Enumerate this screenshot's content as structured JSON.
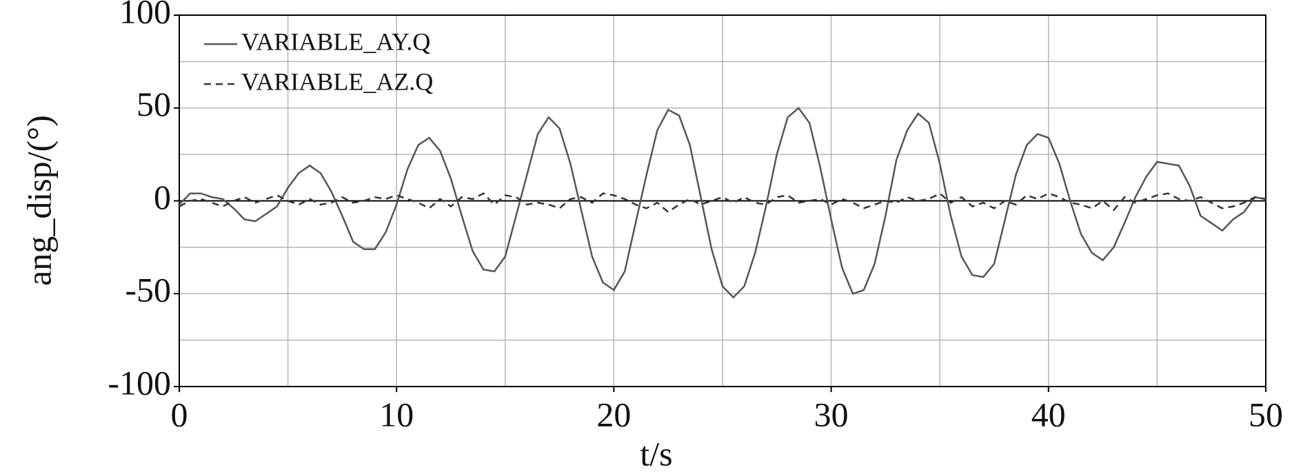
{
  "chart_data": {
    "type": "line",
    "xlabel": "t/s",
    "ylabel": "ang_disp/(°)",
    "x": [
      0,
      0.5,
      1,
      1.5,
      2,
      2.5,
      3,
      3.5,
      4,
      4.5,
      5,
      5.5,
      6,
      6.5,
      7,
      7.5,
      8,
      8.5,
      9,
      9.5,
      10,
      10.5,
      11,
      11.5,
      12,
      12.5,
      13,
      13.5,
      14,
      14.5,
      15,
      15.5,
      16,
      16.5,
      17,
      17.5,
      18,
      18.5,
      19,
      19.5,
      20,
      20.5,
      21,
      21.5,
      22,
      22.5,
      23,
      23.5,
      24,
      24.5,
      25,
      25.5,
      26,
      26.5,
      27,
      27.5,
      28,
      28.5,
      29,
      29.5,
      30,
      30.5,
      31,
      31.5,
      32,
      32.5,
      33,
      33.5,
      34,
      34.5,
      35,
      35.5,
      36,
      36.5,
      37,
      37.5,
      38,
      38.5,
      39,
      39.5,
      40,
      40.5,
      41,
      41.5,
      42,
      42.5,
      43,
      43.5,
      44,
      44.5,
      45,
      45.5,
      46,
      46.5,
      47,
      47.5,
      48,
      48.5,
      49,
      49.5,
      50
    ],
    "series": [
      {
        "name": "VARIABLE_AY.Q",
        "color": "#555555",
        "dash": "solid",
        "values": [
          -2,
          4,
          4,
          2,
          1,
          -4,
          -10,
          -11,
          -7,
          -3,
          7,
          15,
          19,
          15,
          5,
          -8,
          -22,
          -26,
          -26,
          -17,
          -2,
          17,
          30,
          34,
          27,
          12,
          -8,
          -27,
          -37,
          -38,
          -30,
          -8,
          14,
          36,
          45,
          39,
          20,
          -5,
          -30,
          -44,
          -48,
          -38,
          -12,
          14,
          38,
          49,
          46,
          30,
          2,
          -26,
          -46,
          -52,
          -46,
          -28,
          -3,
          25,
          45,
          50,
          42,
          18,
          -10,
          -36,
          -50,
          -48,
          -34,
          -8,
          22,
          38,
          47,
          42,
          20,
          -8,
          -30,
          -40,
          -41,
          -34,
          -10,
          14,
          30,
          36,
          34,
          20,
          0,
          -18,
          -28,
          -32,
          -25,
          -12,
          2,
          13,
          21,
          20,
          19,
          8,
          -8,
          -12,
          -16,
          -10,
          -6,
          2,
          1
        ]
      },
      {
        "name": "VARIABLE_AZ.Q",
        "color": "#333333",
        "dash": "dashed",
        "values": [
          -3,
          0,
          1,
          -1,
          -3,
          0,
          2,
          -1,
          1,
          3,
          0,
          -2,
          1,
          -2,
          -1,
          2,
          -1,
          0,
          2,
          1,
          3,
          1,
          -1,
          -4,
          1,
          -3,
          2,
          1,
          4,
          -2,
          3,
          2,
          -2,
          -1,
          -2,
          -4,
          1,
          2,
          -1,
          4,
          3,
          1,
          -2,
          -4,
          -1,
          -6,
          -2,
          1,
          -2,
          0,
          2,
          -1,
          2,
          -1,
          -2,
          2,
          3,
          -1,
          0,
          1,
          -2,
          1,
          -1,
          -4,
          -2,
          0,
          -1,
          2,
          0,
          1,
          4,
          -1,
          2,
          -3,
          -1,
          -4,
          0,
          -2,
          3,
          1,
          4,
          2,
          -1,
          -2,
          -4,
          0,
          -5,
          2,
          -1,
          1,
          3,
          4,
          1,
          0,
          2,
          -1,
          -4,
          -3,
          -1,
          2,
          1
        ]
      }
    ],
    "xlim": [
      0,
      50
    ],
    "ylim": [
      -100,
      100
    ],
    "xticks": [
      0,
      10,
      20,
      30,
      40,
      50
    ],
    "yticks": [
      -100,
      -50,
      0,
      50,
      100
    ],
    "xgrid": [
      5,
      10,
      15,
      20,
      25,
      30,
      35,
      40,
      45
    ],
    "ygrid": [
      -75,
      -50,
      -25,
      25,
      50,
      75
    ],
    "legend": "upper-left"
  }
}
